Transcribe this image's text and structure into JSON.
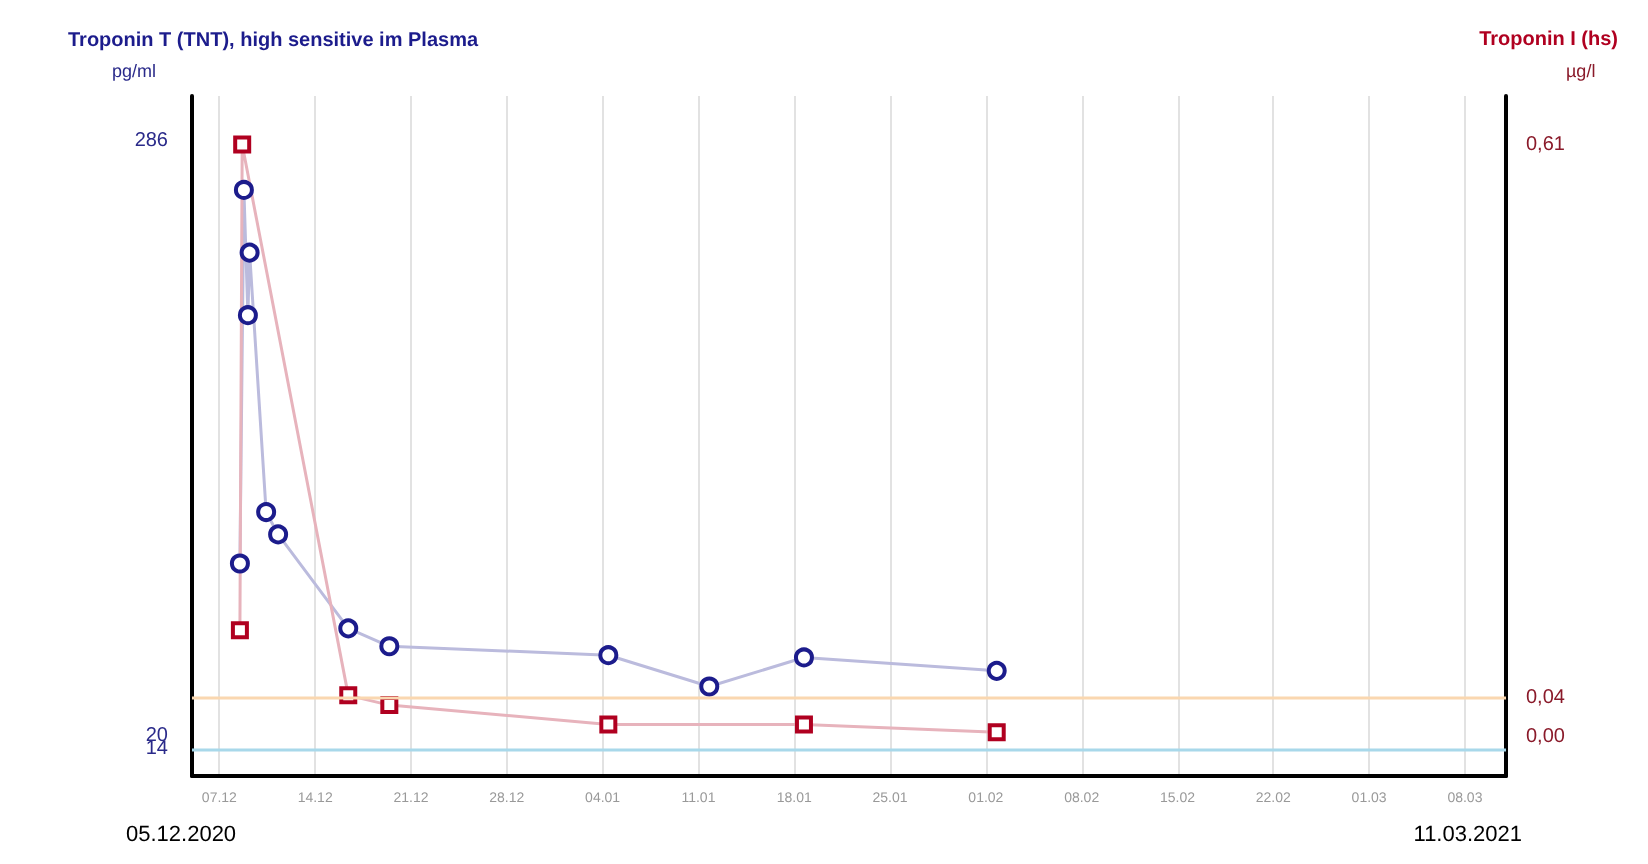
{
  "chart_data": {
    "type": "line",
    "ylabel": "pg/ml",
    "y2label": "µg/l",
    "annotations": [
      "05.12.2020",
      "11.03.2021"
    ],
    "series": [
      {
        "name": "Troponin T (TNT), high sensitive im Plasma",
        "color": "#1c1c8c",
        "x": [
          "2020-12-08T12:00",
          "2020-12-08T19:00",
          "2020-12-09T02:00",
          "2020-12-09T05:00",
          "2020-12-10T10:00",
          "2020-12-11T07:00",
          "2020-12-16T10:00",
          "2020-12-19T10:00",
          "2021-01-04T10:00",
          "2021-01-11T19:00",
          "2021-01-18T17:00",
          "2021-02-01T19:00"
        ],
        "values": [
          97,
          264,
          208,
          236,
          120,
          110,
          68,
          60,
          56,
          42,
          55,
          49
        ]
      },
      {
        "name": "Troponin I (hs)",
        "color": "#b00020",
        "axis": "y2",
        "marker": "square",
        "x": [
          "2020-12-08T12:00",
          "2020-12-08T16:00",
          "2020-12-16T10:00",
          "2020-12-19T10:00",
          "2021-01-04T10:00",
          "2021-01-18T17:00",
          "2021-02-01T19:00"
        ],
        "values": [
          0.11,
          0.61,
          0.043,
          0.033,
          0.013,
          0.013,
          0.005
        ]
      }
    ],
    "xlim": [
      "2020-12-05",
      "2021-03-11"
    ],
    "xticks": [
      {
        "value": "2020-12-07",
        "label": "07.12"
      },
      {
        "value": "2020-12-14",
        "label": "14.12"
      },
      {
        "value": "2020-12-21",
        "label": "21.12"
      },
      {
        "value": "2020-12-28",
        "label": "28.12"
      },
      {
        "value": "2021-01-04",
        "label": "04.01"
      },
      {
        "value": "2021-01-11",
        "label": "11.01"
      },
      {
        "value": "2021-01-18",
        "label": "18.01"
      },
      {
        "value": "2021-01-25",
        "label": "25.01"
      },
      {
        "value": "2021-02-01",
        "label": "01.02"
      },
      {
        "value": "2021-02-08",
        "label": "08.02"
      },
      {
        "value": "2021-02-15",
        "label": "15.02"
      },
      {
        "value": "2021-02-22",
        "label": "22.02"
      },
      {
        "value": "2021-03-01",
        "label": "01.03"
      },
      {
        "value": "2021-03-08",
        "label": "08.03"
      }
    ],
    "ylim": [
      2,
      306
    ],
    "yticks": [
      14,
      20,
      286
    ],
    "y2lim": [
      -0.04,
      0.66
    ],
    "y2ticks": [
      {
        "value": 0,
        "label": "0,00"
      },
      {
        "value": 0.04,
        "label": "0,04"
      },
      {
        "value": 0.61,
        "label": "0,61"
      }
    ],
    "ref_lines": [
      {
        "axis": "y",
        "value": 14,
        "color": "#a8d8ea"
      },
      {
        "axis": "y2",
        "value": 0.04,
        "color": "#fad7b0"
      }
    ],
    "grid": "x",
    "legend": "top",
    "marker": "circle",
    "line_style": "solid"
  }
}
